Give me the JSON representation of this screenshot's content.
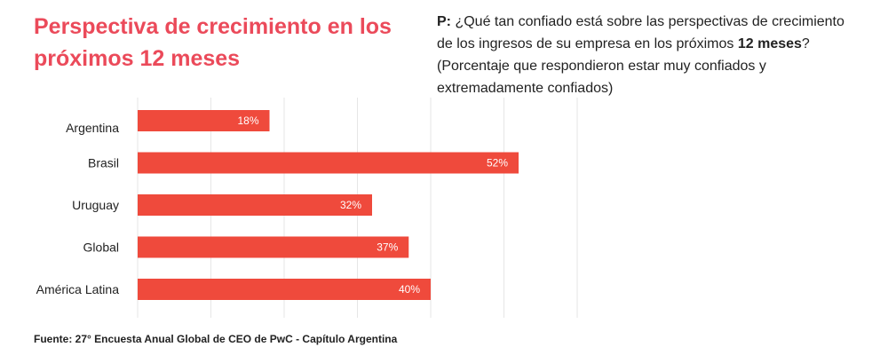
{
  "title": "Perspectiva de crecimiento en los próximos 12 meses",
  "question": {
    "prefix": "P:",
    "text_before": " ¿Qué tan confiado está sobre las perspectivas de crecimiento de los ingresos de su empresa en los próximos ",
    "emphasis": "12 meses",
    "text_after": "? (Porcentaje que respondieron estar muy confiados y extremadamente confiados)"
  },
  "source": "Fuente: 27° Encuesta Anual Global de CEO de PwC - Capítulo Argentina",
  "colors": {
    "bar": "#ef4a3c",
    "title": "#eb4a5a",
    "grid": "#e6e6e6"
  },
  "chart_data": {
    "type": "bar",
    "orientation": "horizontal",
    "categories": [
      "Argentina",
      "Brasil",
      "Uruguay",
      "Global",
      "América Latina"
    ],
    "values": [
      18,
      52,
      32,
      37,
      40
    ],
    "value_labels": [
      "18%",
      "52%",
      "32%",
      "37%",
      "40%"
    ],
    "xlim": [
      0,
      60
    ],
    "grid": true
  }
}
